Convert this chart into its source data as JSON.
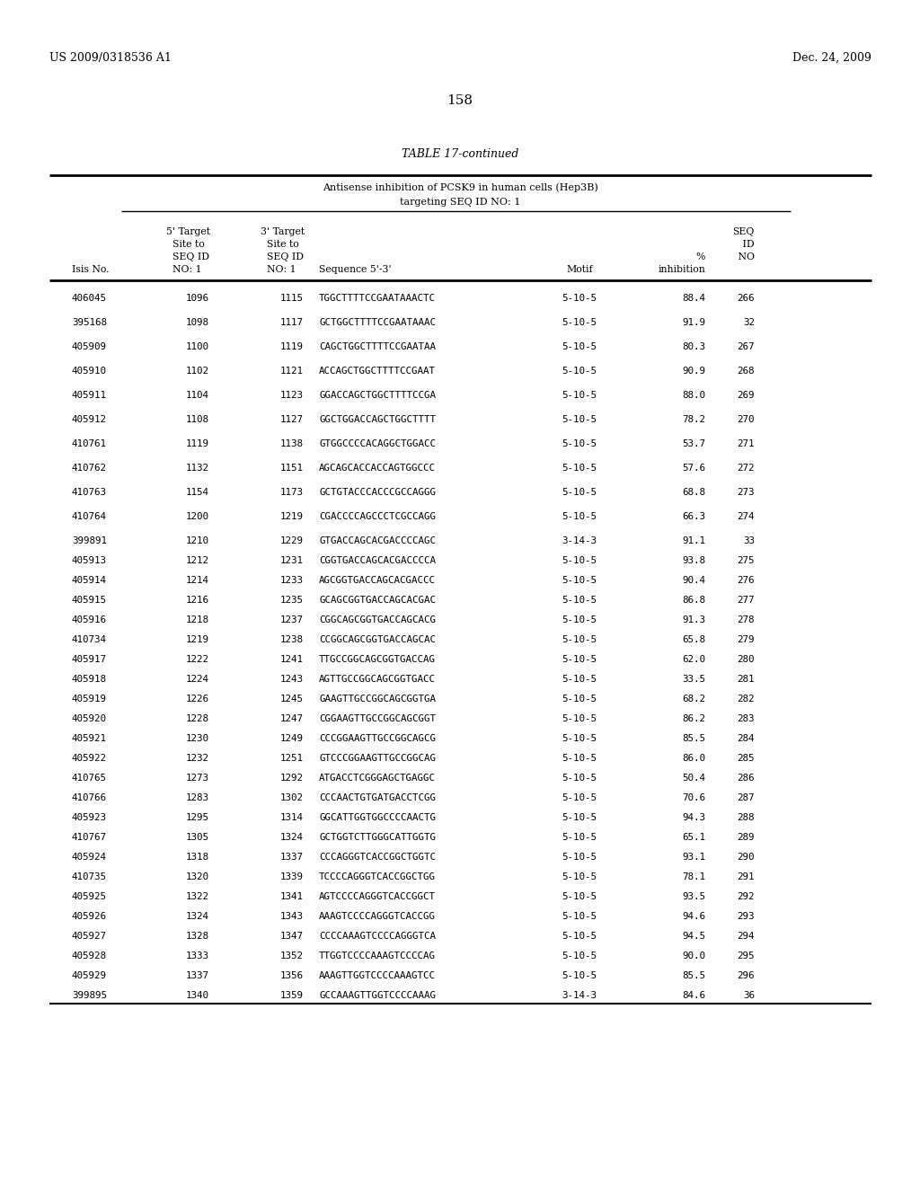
{
  "header_left": "US 2009/0318536 A1",
  "header_right": "Dec. 24, 2009",
  "page_number": "158",
  "table_title": "TABLE 17-continued",
  "table_subtitle1": "Antisense inhibition of PCSK9 in human cells (Hep3B)",
  "table_subtitle2": "targeting SEQ ID NO: 1",
  "rows": [
    [
      "406045",
      "1096",
      "1115",
      "TGGCTTTTCCGAATAAACTC",
      "5-10-5",
      "88.4",
      "266"
    ],
    [
      "395168",
      "1098",
      "1117",
      "GCTGGCTTTTCCGAATAAAC",
      "5-10-5",
      "91.9",
      "32"
    ],
    [
      "405909",
      "1100",
      "1119",
      "CAGCTGGCTTTTCCGAATAA",
      "5-10-5",
      "80.3",
      "267"
    ],
    [
      "405910",
      "1102",
      "1121",
      "ACCAGCTGGCTTTTCCGAAT",
      "5-10-5",
      "90.9",
      "268"
    ],
    [
      "405911",
      "1104",
      "1123",
      "GGACCAGCTGGCTTTTCCGA",
      "5-10-5",
      "88.0",
      "269"
    ],
    [
      "405912",
      "1108",
      "1127",
      "GGCTGGACCAGCTGGCTTTT",
      "5-10-5",
      "78.2",
      "270"
    ],
    [
      "410761",
      "1119",
      "1138",
      "GTGGCCCCACAGGCTGGACC",
      "5-10-5",
      "53.7",
      "271"
    ],
    [
      "410762",
      "1132",
      "1151",
      "AGCAGCACCACCAGTGGCCC",
      "5-10-5",
      "57.6",
      "272"
    ],
    [
      "410763",
      "1154",
      "1173",
      "GCTGTACCCACCCGCCAGGG",
      "5-10-5",
      "68.8",
      "273"
    ],
    [
      "410764",
      "1200",
      "1219",
      "CGACCCCAGCCCTCGCCAGG",
      "5-10-5",
      "66.3",
      "274"
    ],
    [
      "399891",
      "1210",
      "1229",
      "GTGACCAGCACGACCCCAGC",
      "3-14-3",
      "91.1",
      "33"
    ],
    [
      "405913",
      "1212",
      "1231",
      "CGGTGACCAGCACGACCCCA",
      "5-10-5",
      "93.8",
      "275"
    ],
    [
      "405914",
      "1214",
      "1233",
      "AGCGGTGACCAGCACGACCC",
      "5-10-5",
      "90.4",
      "276"
    ],
    [
      "405915",
      "1216",
      "1235",
      "GCAGCGGTGACCAGCACGAC",
      "5-10-5",
      "86.8",
      "277"
    ],
    [
      "405916",
      "1218",
      "1237",
      "CGGCAGCGGTGACCAGCACG",
      "5-10-5",
      "91.3",
      "278"
    ],
    [
      "410734",
      "1219",
      "1238",
      "CCGGCAGCGGTGACCAGCAC",
      "5-10-5",
      "65.8",
      "279"
    ],
    [
      "405917",
      "1222",
      "1241",
      "TTGCCGGCAGCGGTGACCAG",
      "5-10-5",
      "62.0",
      "280"
    ],
    [
      "405918",
      "1224",
      "1243",
      "AGTTGCCGGCAGCGGTGACC",
      "5-10-5",
      "33.5",
      "281"
    ],
    [
      "405919",
      "1226",
      "1245",
      "GAAGTTGCCGGCAGCGGTGA",
      "5-10-5",
      "68.2",
      "282"
    ],
    [
      "405920",
      "1228",
      "1247",
      "CGGAAGTTGCCGGCAGCGGT",
      "5-10-5",
      "86.2",
      "283"
    ],
    [
      "405921",
      "1230",
      "1249",
      "CCCGGAAGTTGCCGGCAGCG",
      "5-10-5",
      "85.5",
      "284"
    ],
    [
      "405922",
      "1232",
      "1251",
      "GTCCCGGAAGTTGCCGGCAG",
      "5-10-5",
      "86.0",
      "285"
    ],
    [
      "410765",
      "1273",
      "1292",
      "ATGACCTCGGGAGCTGAGGC",
      "5-10-5",
      "50.4",
      "286"
    ],
    [
      "410766",
      "1283",
      "1302",
      "CCCAACTGTGATGACCTCGG",
      "5-10-5",
      "70.6",
      "287"
    ],
    [
      "405923",
      "1295",
      "1314",
      "GGCATTGGTGGCCCCAACTG",
      "5-10-5",
      "94.3",
      "288"
    ],
    [
      "410767",
      "1305",
      "1324",
      "GCTGGTCTTGGGCATTGGTG",
      "5-10-5",
      "65.1",
      "289"
    ],
    [
      "405924",
      "1318",
      "1337",
      "CCCAGGGTCACCGGCTGGTC",
      "5-10-5",
      "93.1",
      "290"
    ],
    [
      "410735",
      "1320",
      "1339",
      "TCCCCAGGGTCACCGGCTGG",
      "5-10-5",
      "78.1",
      "291"
    ],
    [
      "405925",
      "1322",
      "1341",
      "AGTCCCCAGGGTCACCGGCT",
      "5-10-5",
      "93.5",
      "292"
    ],
    [
      "405926",
      "1324",
      "1343",
      "AAAGTCCCCAGGGTCACCGG",
      "5-10-5",
      "94.6",
      "293"
    ],
    [
      "405927",
      "1328",
      "1347",
      "CCCCAAAGTCCCCAGGGTCA",
      "5-10-5",
      "94.5",
      "294"
    ],
    [
      "405928",
      "1333",
      "1352",
      "TTGGTCCCCAAAGTCCCCAG",
      "5-10-5",
      "90.0",
      "295"
    ],
    [
      "405929",
      "1337",
      "1356",
      "AAAGTTGGTCCCCAAAGTCC",
      "5-10-5",
      "85.5",
      "296"
    ],
    [
      "399895",
      "1340",
      "1359",
      "GCCAAAGTTGGTCCCCAAAG",
      "3-14-3",
      "84.6",
      "36"
    ]
  ],
  "background_color": "#ffffff",
  "text_color": "#000000"
}
